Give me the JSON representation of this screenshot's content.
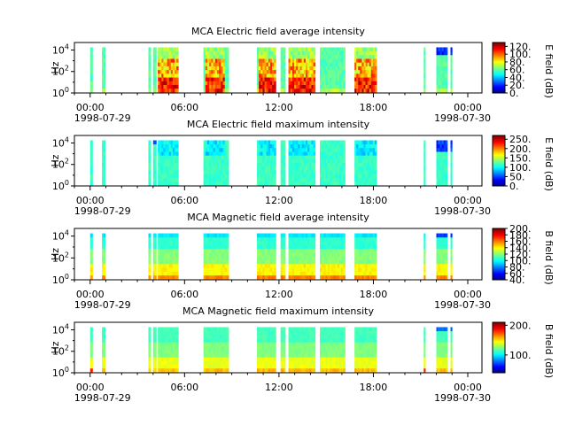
{
  "chart_data": [
    {
      "type": "heatmap",
      "title": "MCA  Electric field average intensity",
      "ylabel": "Hz",
      "y_ticks": [
        "10^0",
        "10^2",
        "10^4"
      ],
      "y_scale": "log",
      "ylim": [
        1,
        50000
      ],
      "x_ticks": [
        "00:00",
        "06:00",
        "12:00",
        "18:00",
        "00:00"
      ],
      "x_dates": [
        "1998-07-29",
        "1998-07-30"
      ],
      "colorbar_label": "E field (dB)",
      "colorbar_ticks": [
        "0.",
        "20.",
        "40.",
        "60.",
        "80.",
        "100.",
        "120."
      ],
      "colorbar_range": [
        0,
        130
      ],
      "profile": "e_avg"
    },
    {
      "type": "heatmap",
      "title": "MCA  Electric field maximum intensity",
      "ylabel": "Hz",
      "y_ticks": [
        "10^0",
        "10^2",
        "10^4"
      ],
      "y_scale": "log",
      "ylim": [
        1,
        50000
      ],
      "x_ticks": [
        "00:00",
        "06:00",
        "12:00",
        "18:00",
        "00:00"
      ],
      "x_dates": [
        "1998-07-29",
        "1998-07-30"
      ],
      "colorbar_label": "E field (dB)",
      "colorbar_ticks": [
        "0.",
        "50.",
        "100.",
        "150.",
        "200.",
        "250."
      ],
      "colorbar_range": [
        0,
        270
      ],
      "profile": "e_max"
    },
    {
      "type": "heatmap",
      "title": "MCA  Magnetic field average intensity",
      "ylabel": "Hz",
      "y_ticks": [
        "10^0",
        "10^2",
        "10^4"
      ],
      "y_scale": "log",
      "ylim": [
        1,
        50000
      ],
      "x_ticks": [
        "00:00",
        "06:00",
        "12:00",
        "18:00",
        "00:00"
      ],
      "x_dates": [
        "1998-07-29",
        "1998-07-30"
      ],
      "colorbar_label": "B field (dB)",
      "colorbar_ticks": [
        "40.",
        "60.",
        "80.",
        "100.",
        "120.",
        "140.",
        "160.",
        "180.",
        "200."
      ],
      "colorbar_range": [
        40,
        200
      ],
      "profile": "b_avg"
    },
    {
      "type": "heatmap",
      "title": "MCA  Magnetic field maximum intensity",
      "ylabel": "Hz",
      "y_ticks": [
        "10^0",
        "10^2",
        "10^4"
      ],
      "y_scale": "log",
      "ylim": [
        1,
        50000
      ],
      "x_ticks": [
        "00:00",
        "06:00",
        "12:00",
        "18:00",
        "00:00"
      ],
      "x_dates": [
        "1998-07-29",
        "1998-07-30"
      ],
      "colorbar_label": "B field (dB)",
      "colorbar_ticks": [
        "100.",
        "200."
      ],
      "colorbar_range": [
        40,
        210
      ],
      "profile": "b_max"
    }
  ],
  "data_hours": [
    [
      0.0,
      0.15
    ],
    [
      0.75,
      0.95
    ],
    [
      3.7,
      3.85
    ],
    [
      4.0,
      4.2
    ],
    [
      4.3,
      5.6
    ],
    [
      7.2,
      8.8
    ],
    [
      10.6,
      11.8
    ],
    [
      12.1,
      12.4
    ],
    [
      12.6,
      14.3
    ],
    [
      14.6,
      16.2
    ],
    [
      16.8,
      18.2
    ],
    [
      21.2,
      21.3
    ],
    [
      22.0,
      22.7
    ],
    [
      22.9,
      23.0
    ]
  ],
  "x_range_hours": [
    -1,
    24.9
  ],
  "colormap": "jet"
}
